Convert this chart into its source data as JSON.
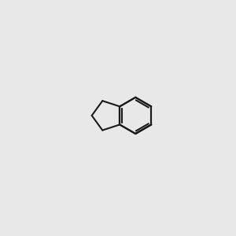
{
  "bg": "#e8e8e8",
  "bond_color": "#1a1a1a",
  "red": "#cc0000",
  "orange": "#b87820",
  "figsize": [
    3.0,
    3.0
  ],
  "dpi": 100,
  "lw": 1.5
}
